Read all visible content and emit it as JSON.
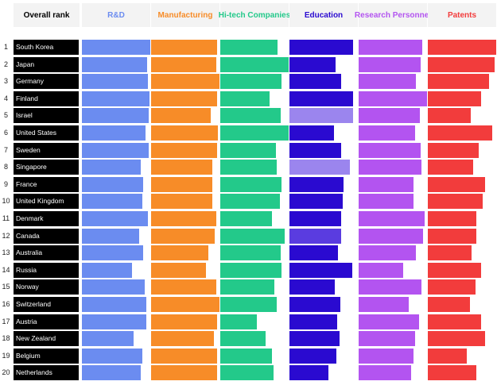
{
  "chart_data": {
    "type": "bar",
    "title": "",
    "rank_header": "Overall rank",
    "columns": [
      {
        "key": "rd",
        "label": "R&D",
        "color": "#6b8cf0"
      },
      {
        "key": "manufacturing",
        "label": "Manufacturing",
        "color": "#f78c28"
      },
      {
        "key": "hitech",
        "label": "Hi-tech Companies",
        "color": "#23c98a"
      },
      {
        "key": "education",
        "label": "Education",
        "color": "#2a0ad0"
      },
      {
        "key": "research",
        "label": "Research Personnel",
        "color": "#b354f0"
      },
      {
        "key": "patents",
        "label": "Patents",
        "color": "#f23c3c"
      }
    ],
    "highlight_colors": {
      "education_light": "#9b85ee",
      "education_mid": "#5a3ce0"
    },
    "rows": [
      {
        "rank": "1",
        "country": "South Korea",
        "values": [
          1.0,
          0.97,
          0.84,
          0.93,
          0.93,
          1.0
        ]
      },
      {
        "rank": "2",
        "country": "Japan",
        "values": [
          0.95,
          0.95,
          1.0,
          0.67,
          0.91,
          0.98
        ]
      },
      {
        "rank": "3",
        "country": "Germany",
        "values": [
          0.96,
          1.0,
          0.9,
          0.75,
          0.84,
          0.9
        ]
      },
      {
        "rank": "4",
        "country": "Finland",
        "values": [
          0.99,
          0.96,
          0.72,
          0.93,
          1.0,
          0.78
        ]
      },
      {
        "rank": "5",
        "country": "Israel",
        "values": [
          0.98,
          0.87,
          0.88,
          0.93,
          0.9,
          0.63
        ]
      },
      {
        "rank": "6",
        "country": "United States",
        "values": [
          0.93,
          0.98,
          1.0,
          0.65,
          0.82,
          0.94
        ]
      },
      {
        "rank": "7",
        "country": "Sweden",
        "values": [
          0.98,
          0.97,
          0.81,
          0.75,
          0.91,
          0.74
        ]
      },
      {
        "rank": "8",
        "country": "Singapore",
        "values": [
          0.86,
          0.9,
          0.83,
          0.88,
          0.92,
          0.66
        ]
      },
      {
        "rank": "9",
        "country": "France",
        "values": [
          0.9,
          0.89,
          0.89,
          0.79,
          0.8,
          0.84
        ]
      },
      {
        "rank": "10",
        "country": "United Kingdom",
        "values": [
          0.88,
          0.89,
          0.87,
          0.78,
          0.8,
          0.8
        ]
      },
      {
        "rank": "11",
        "country": "Denmark",
        "values": [
          0.96,
          0.95,
          0.75,
          0.76,
          0.96,
          0.71
        ]
      },
      {
        "rank": "12",
        "country": "Canada",
        "values": [
          0.84,
          0.93,
          0.94,
          0.75,
          0.94,
          0.71
        ]
      },
      {
        "rank": "13",
        "country": "Australia",
        "values": [
          0.89,
          0.84,
          0.88,
          0.71,
          0.84,
          0.64
        ]
      },
      {
        "rank": "14",
        "country": "Russia",
        "values": [
          0.73,
          0.8,
          0.9,
          0.92,
          0.65,
          0.78
        ]
      },
      {
        "rank": "15",
        "country": "Norway",
        "values": [
          0.92,
          0.95,
          0.79,
          0.66,
          0.92,
          0.7
        ]
      },
      {
        "rank": "16",
        "country": "Switzerland",
        "values": [
          0.94,
          1.0,
          0.83,
          0.74,
          0.73,
          0.62
        ]
      },
      {
        "rank": "17",
        "country": "Austria",
        "values": [
          0.94,
          0.97,
          0.54,
          0.7,
          0.88,
          0.78
        ]
      },
      {
        "rank": "18",
        "country": "New Zealand",
        "values": [
          0.75,
          0.92,
          0.66,
          0.73,
          0.83,
          0.84
        ]
      },
      {
        "rank": "19",
        "country": "Belgium",
        "values": [
          0.88,
          0.97,
          0.75,
          0.69,
          0.8,
          0.57
        ]
      },
      {
        "rank": "20",
        "country": "Netherlands",
        "values": [
          0.86,
          0.97,
          0.78,
          0.57,
          0.77,
          0.71
        ]
      }
    ]
  }
}
